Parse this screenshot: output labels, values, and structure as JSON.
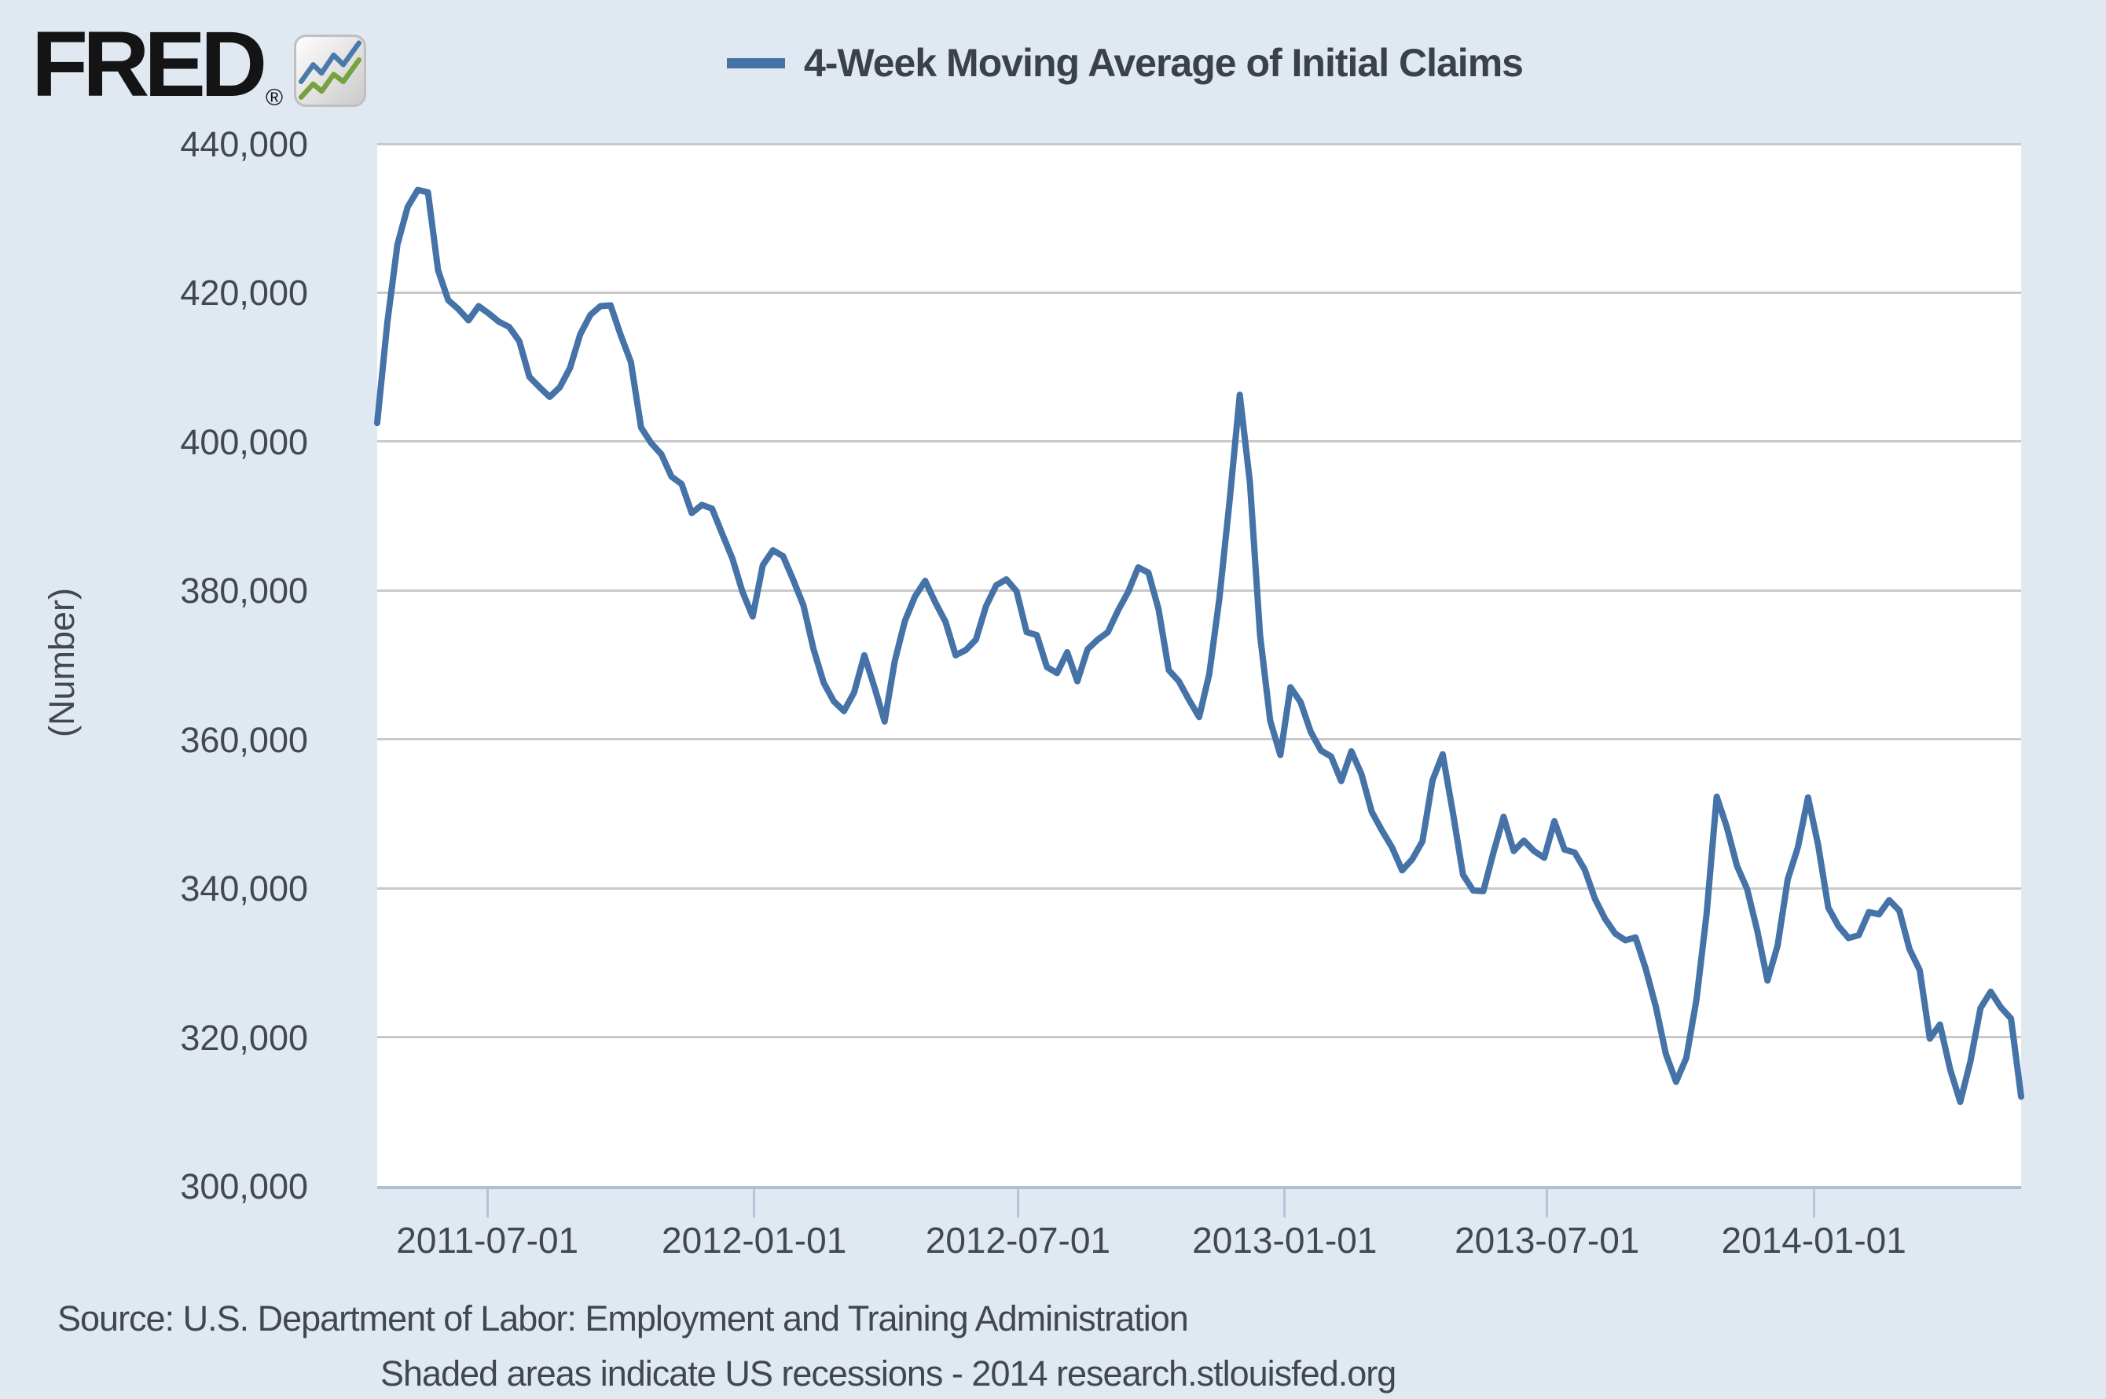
{
  "header": {
    "logo_text": "FRED",
    "logo_reg": "®"
  },
  "legend": {
    "label": "4-Week Moving Average of Initial Claims",
    "swatch_color": "#4572a7"
  },
  "footer": {
    "source_line": "Source: U.S. Department of Labor: Employment and Training Administration",
    "note_line": "Shaded areas indicate US recessions - 2014 research.stlouisfed.org"
  },
  "colors": {
    "page_bg": "#e0e8f1",
    "plot_bg": "#ffffff",
    "gridline": "#c9c9c9",
    "axis_line": "#aebfd4",
    "tick": "#b4c3d6",
    "text": "#42484f",
    "line": "#4572a7",
    "logo_icon_blue": "#4a7aab",
    "logo_icon_green": "#76a240"
  },
  "chart_data": {
    "type": "line",
    "title": "4-Week Moving Average of Initial Claims",
    "xlabel": "",
    "ylabel": "(Number)",
    "legend_position": "top-center",
    "grid": "horizontal",
    "y_axis": {
      "min": 300000,
      "max": 440000,
      "ticks": [
        {
          "value": 300000,
          "label": "300,000"
        },
        {
          "value": 320000,
          "label": "320,000"
        },
        {
          "value": 340000,
          "label": "340,000"
        },
        {
          "value": 360000,
          "label": "360,000"
        },
        {
          "value": 380000,
          "label": "380,000"
        },
        {
          "value": 400000,
          "label": "400,000"
        },
        {
          "value": 420000,
          "label": "420,000"
        },
        {
          "value": 440000,
          "label": "440,000"
        }
      ]
    },
    "x_axis": {
      "ticks": [
        "2011-07-01",
        "2012-01-01",
        "2012-07-01",
        "2013-01-01",
        "2013-07-01",
        "2014-01-01"
      ]
    },
    "series": [
      {
        "name": "4-Week Moving Average of Initial Claims",
        "color": "#4572a7",
        "unit": "Number",
        "points": [
          [
            "2011-04-16",
            402500
          ],
          [
            "2011-04-23",
            416000
          ],
          [
            "2011-04-30",
            426500
          ],
          [
            "2011-05-07",
            431500
          ],
          [
            "2011-05-14",
            433800
          ],
          [
            "2011-05-21",
            433500
          ],
          [
            "2011-05-28",
            423000
          ],
          [
            "2011-06-04",
            419000
          ],
          [
            "2011-06-11",
            417800
          ],
          [
            "2011-06-18",
            416300
          ],
          [
            "2011-06-25",
            418200
          ],
          [
            "2011-07-02",
            417200
          ],
          [
            "2011-07-09",
            416100
          ],
          [
            "2011-07-16",
            415400
          ],
          [
            "2011-07-23",
            413500
          ],
          [
            "2011-07-30",
            408700
          ],
          [
            "2011-08-06",
            407300
          ],
          [
            "2011-08-13",
            406000
          ],
          [
            "2011-08-20",
            407300
          ],
          [
            "2011-08-27",
            409900
          ],
          [
            "2011-09-03",
            414400
          ],
          [
            "2011-09-10",
            417000
          ],
          [
            "2011-09-17",
            418200
          ],
          [
            "2011-09-24",
            418300
          ],
          [
            "2011-10-01",
            414300
          ],
          [
            "2011-10-08",
            410700
          ],
          [
            "2011-10-15",
            401900
          ],
          [
            "2011-10-22",
            399800
          ],
          [
            "2011-10-29",
            398300
          ],
          [
            "2011-11-05",
            395300
          ],
          [
            "2011-11-12",
            394300
          ],
          [
            "2011-11-19",
            390400
          ],
          [
            "2011-11-26",
            391500
          ],
          [
            "2011-12-03",
            391000
          ],
          [
            "2011-12-10",
            387600
          ],
          [
            "2011-12-17",
            384300
          ],
          [
            "2011-12-24",
            379800
          ],
          [
            "2011-12-31",
            376500
          ],
          [
            "2012-01-07",
            383400
          ],
          [
            "2012-01-14",
            385400
          ],
          [
            "2012-01-21",
            384600
          ],
          [
            "2012-01-28",
            381400
          ],
          [
            "2012-02-04",
            378000
          ],
          [
            "2012-02-11",
            372100
          ],
          [
            "2012-02-18",
            367600
          ],
          [
            "2012-02-25",
            365100
          ],
          [
            "2012-03-03",
            363800
          ],
          [
            "2012-03-10",
            366300
          ],
          [
            "2012-03-17",
            371300
          ],
          [
            "2012-03-24",
            367000
          ],
          [
            "2012-03-31",
            362400
          ],
          [
            "2012-04-07",
            370500
          ],
          [
            "2012-04-14",
            375900
          ],
          [
            "2012-04-21",
            379200
          ],
          [
            "2012-04-28",
            381300
          ],
          [
            "2012-05-05",
            378400
          ],
          [
            "2012-05-12",
            375800
          ],
          [
            "2012-05-19",
            371300
          ],
          [
            "2012-05-26",
            372000
          ],
          [
            "2012-06-02",
            373400
          ],
          [
            "2012-06-09",
            377900
          ],
          [
            "2012-06-16",
            380700
          ],
          [
            "2012-06-23",
            381500
          ],
          [
            "2012-06-30",
            379900
          ],
          [
            "2012-07-07",
            374400
          ],
          [
            "2012-07-14",
            374000
          ],
          [
            "2012-07-21",
            369700
          ],
          [
            "2012-07-28",
            368900
          ],
          [
            "2012-08-04",
            371700
          ],
          [
            "2012-08-11",
            367800
          ],
          [
            "2012-08-18",
            372100
          ],
          [
            "2012-08-25",
            373400
          ],
          [
            "2012-09-01",
            374400
          ],
          [
            "2012-09-08",
            377300
          ],
          [
            "2012-09-15",
            379800
          ],
          [
            "2012-09-22",
            383100
          ],
          [
            "2012-09-29",
            382400
          ],
          [
            "2012-10-06",
            377500
          ],
          [
            "2012-10-13",
            369300
          ],
          [
            "2012-10-20",
            367800
          ],
          [
            "2012-10-27",
            365300
          ],
          [
            "2012-11-03",
            363000
          ],
          [
            "2012-11-10",
            368800
          ],
          [
            "2012-11-17",
            379000
          ],
          [
            "2012-11-24",
            392000
          ],
          [
            "2012-12-01",
            406300
          ],
          [
            "2012-12-08",
            394500
          ],
          [
            "2012-12-15",
            374000
          ],
          [
            "2012-12-22",
            362500
          ],
          [
            "2012-12-29",
            357900
          ],
          [
            "2013-01-05",
            367000
          ],
          [
            "2013-01-12",
            365000
          ],
          [
            "2013-01-19",
            361000
          ],
          [
            "2013-01-26",
            358500
          ],
          [
            "2013-02-02",
            357700
          ],
          [
            "2013-02-09",
            354400
          ],
          [
            "2013-02-16",
            358400
          ],
          [
            "2013-02-23",
            355300
          ],
          [
            "2013-03-02",
            350300
          ],
          [
            "2013-03-09",
            347800
          ],
          [
            "2013-03-16",
            345500
          ],
          [
            "2013-03-23",
            342400
          ],
          [
            "2013-03-30",
            343900
          ],
          [
            "2013-04-06",
            346300
          ],
          [
            "2013-04-13",
            354500
          ],
          [
            "2013-04-20",
            358000
          ],
          [
            "2013-04-27",
            350200
          ],
          [
            "2013-05-04",
            341800
          ],
          [
            "2013-05-11",
            339700
          ],
          [
            "2013-05-18",
            339600
          ],
          [
            "2013-05-25",
            344800
          ],
          [
            "2013-06-01",
            349600
          ],
          [
            "2013-06-08",
            345000
          ],
          [
            "2013-06-15",
            346400
          ],
          [
            "2013-06-22",
            345000
          ],
          [
            "2013-06-29",
            344100
          ],
          [
            "2013-07-06",
            349000
          ],
          [
            "2013-07-13",
            345200
          ],
          [
            "2013-07-20",
            344800
          ],
          [
            "2013-07-27",
            342500
          ],
          [
            "2013-08-03",
            338600
          ],
          [
            "2013-08-10",
            335900
          ],
          [
            "2013-08-17",
            333900
          ],
          [
            "2013-08-24",
            333000
          ],
          [
            "2013-08-31",
            333400
          ],
          [
            "2013-09-07",
            329200
          ],
          [
            "2013-09-14",
            324100
          ],
          [
            "2013-09-21",
            317700
          ],
          [
            "2013-09-28",
            314000
          ],
          [
            "2013-10-05",
            317200
          ],
          [
            "2013-10-12",
            325000
          ],
          [
            "2013-10-19",
            336500
          ],
          [
            "2013-10-26",
            352300
          ],
          [
            "2013-11-02",
            348200
          ],
          [
            "2013-11-09",
            343000
          ],
          [
            "2013-11-16",
            339900
          ],
          [
            "2013-11-23",
            334300
          ],
          [
            "2013-11-30",
            327600
          ],
          [
            "2013-12-07",
            332300
          ],
          [
            "2013-12-14",
            341200
          ],
          [
            "2013-12-21",
            345500
          ],
          [
            "2013-12-28",
            352200
          ],
          [
            "2014-01-04",
            345800
          ],
          [
            "2014-01-11",
            337400
          ],
          [
            "2014-01-18",
            334900
          ],
          [
            "2014-01-25",
            333300
          ],
          [
            "2014-02-01",
            333700
          ],
          [
            "2014-02-08",
            336800
          ],
          [
            "2014-02-15",
            336500
          ],
          [
            "2014-02-22",
            338400
          ],
          [
            "2014-03-01",
            337000
          ],
          [
            "2014-03-08",
            331800
          ],
          [
            "2014-03-15",
            329000
          ],
          [
            "2014-03-22",
            319800
          ],
          [
            "2014-03-29",
            321700
          ],
          [
            "2014-04-05",
            315700
          ],
          [
            "2014-04-12",
            311300
          ],
          [
            "2014-04-19",
            316700
          ],
          [
            "2014-04-26",
            323900
          ],
          [
            "2014-05-03",
            326100
          ],
          [
            "2014-05-10",
            324000
          ],
          [
            "2014-05-17",
            322500
          ],
          [
            "2014-05-24",
            312000
          ]
        ]
      }
    ]
  }
}
